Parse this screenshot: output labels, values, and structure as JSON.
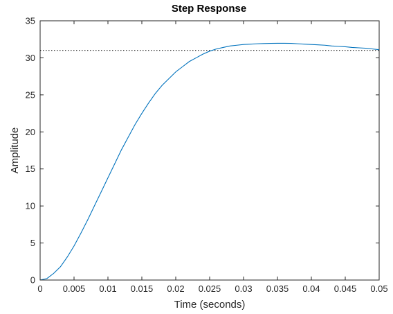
{
  "chart_data": {
    "type": "line",
    "title": "Step Response",
    "xlabel": "Time (seconds)",
    "ylabel": "Amplitude",
    "xlim": [
      0,
      0.05
    ],
    "ylim": [
      0,
      35
    ],
    "xticks": [
      0,
      0.005,
      0.01,
      0.015,
      0.02,
      0.025,
      0.03,
      0.035,
      0.04,
      0.045,
      0.05
    ],
    "xtick_labels": [
      "0",
      "0.005",
      "0.01",
      "0.015",
      "0.02",
      "0.025",
      "0.03",
      "0.035",
      "0.04",
      "0.045",
      "0.05"
    ],
    "yticks": [
      0,
      5,
      10,
      15,
      20,
      25,
      30,
      35
    ],
    "ytick_labels": [
      "0",
      "5",
      "10",
      "15",
      "20",
      "25",
      "30",
      "35"
    ],
    "grid": false,
    "colors": {
      "line": "#0072BD",
      "reference": "#000000",
      "axes": "#262626"
    },
    "series": [
      {
        "x": [
          0,
          0.001,
          0.002,
          0.003,
          0.004,
          0.005,
          0.006,
          0.007,
          0.008,
          0.009,
          0.01,
          0.011,
          0.012,
          0.013,
          0.014,
          0.015,
          0.016,
          0.017,
          0.018,
          0.019,
          0.02,
          0.021,
          0.022,
          0.023,
          0.024,
          0.025,
          0.026,
          0.027,
          0.028,
          0.029,
          0.03,
          0.031,
          0.032,
          0.033,
          0.034,
          0.035,
          0.036,
          0.037,
          0.038,
          0.039,
          0.04,
          0.041,
          0.042,
          0.043,
          0.044,
          0.045,
          0.046,
          0.047,
          0.048,
          0.049,
          0.05
        ],
        "values": [
          0,
          0.2,
          0.9,
          1.8,
          3.1,
          4.6,
          6.3,
          8.1,
          10.0,
          11.9,
          13.8,
          15.7,
          17.6,
          19.3,
          21.0,
          22.5,
          23.9,
          25.2,
          26.3,
          27.2,
          28.1,
          28.8,
          29.5,
          30.0,
          30.5,
          30.9,
          31.2,
          31.4,
          31.6,
          31.7,
          31.8,
          31.85,
          31.9,
          31.93,
          31.95,
          31.96,
          31.96,
          31.95,
          31.9,
          31.85,
          31.8,
          31.75,
          31.7,
          31.6,
          31.55,
          31.5,
          31.4,
          31.35,
          31.3,
          31.2,
          31.1
        ]
      }
    ],
    "reference_line": {
      "y": 31.0,
      "style": "dotted"
    }
  }
}
